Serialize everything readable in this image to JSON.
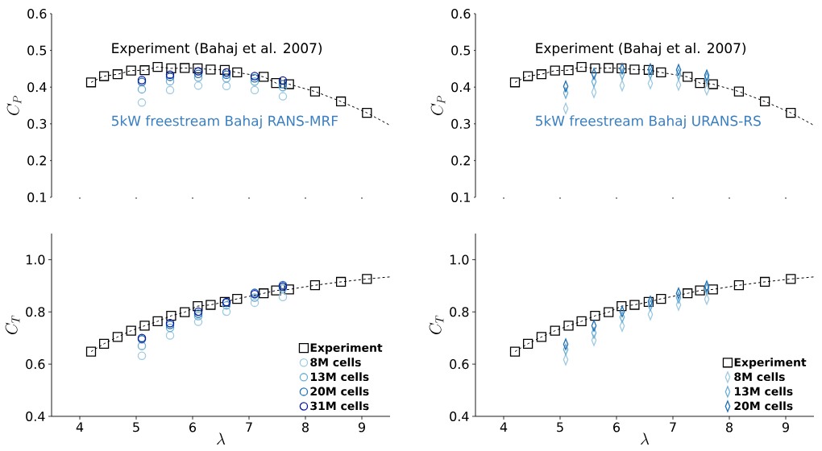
{
  "chart_data": [
    {
      "type": "scatter",
      "ylabel": "C_P",
      "ylim": [
        0.1,
        0.6
      ],
      "xticks": [
        4,
        5,
        6,
        7,
        8,
        9
      ],
      "yticks": [
        0.1,
        0.2,
        0.3,
        0.4,
        0.5,
        0.6
      ],
      "tick_labels": "y",
      "annotations": [
        "Experiment (Bahaj et al. 2007)",
        "5kW freestream Bahaj RANS-MRF"
      ],
      "series": [
        {
          "type": "line",
          "color": "#000000",
          "line_style": "dashed",
          "marker": "none",
          "x": [
            4.2,
            4.43,
            4.67,
            4.91,
            5.15,
            5.38,
            5.62,
            5.86,
            6.09,
            6.32,
            6.57,
            6.79,
            7.26,
            7.48,
            7.71,
            8.17,
            8.63,
            9.09,
            9.5
          ],
          "values": [
            0.413,
            0.43,
            0.435,
            0.445,
            0.446,
            0.455,
            0.451,
            0.452,
            0.451,
            0.448,
            0.447,
            0.44,
            0.428,
            0.411,
            0.408,
            0.388,
            0.361,
            0.33,
            0.296
          ]
        },
        {
          "color": "#000000",
          "marker": "square",
          "x": [
            4.2,
            4.43,
            4.67,
            4.91,
            5.15,
            5.38,
            5.62,
            5.86,
            6.09,
            6.32,
            6.57,
            6.79,
            7.26,
            7.48,
            7.71,
            8.17,
            8.63,
            9.09
          ],
          "values": [
            0.413,
            0.43,
            0.435,
            0.445,
            0.446,
            0.455,
            0.451,
            0.452,
            0.451,
            0.448,
            0.447,
            0.44,
            0.428,
            0.411,
            0.408,
            0.388,
            0.361,
            0.33
          ]
        },
        {
          "color": "#9ecae1",
          "marker": "circle",
          "x": [
            5.1,
            5.6,
            6.1,
            6.6,
            7.1,
            7.6
          ],
          "values": [
            0.358,
            0.392,
            0.404,
            0.403,
            0.392,
            0.375
          ]
        },
        {
          "color": "#6baed6",
          "marker": "circle",
          "x": [
            5.1,
            5.6,
            6.1,
            6.6,
            7.1,
            7.6
          ],
          "values": [
            0.394,
            0.416,
            0.426,
            0.424,
            0.415,
            0.4
          ]
        },
        {
          "color": "#2171b5",
          "marker": "circle",
          "x": [
            5.1,
            5.6,
            6.1,
            6.6,
            7.1,
            7.6
          ],
          "values": [
            0.414,
            0.428,
            0.436,
            0.434,
            0.424,
            0.408
          ]
        },
        {
          "color": "#08189c",
          "marker": "circle",
          "x": [
            5.1,
            5.6,
            6.1,
            6.6,
            7.1,
            7.6
          ],
          "values": [
            0.419,
            0.434,
            0.443,
            0.44,
            0.43,
            0.418
          ]
        }
      ]
    },
    {
      "type": "scatter",
      "ylabel": "C_P",
      "ylim": [
        0.1,
        0.6
      ],
      "xticks": [
        4,
        5,
        6,
        7,
        8,
        9
      ],
      "yticks": [
        0.1,
        0.2,
        0.3,
        0.4,
        0.5,
        0.6
      ],
      "tick_labels": "y",
      "annotations": [
        "Experiment (Bahaj et al. 2007)",
        "5kW freestream Bahaj URANS-RS"
      ],
      "series": [
        {
          "type": "line",
          "color": "#000000",
          "line_style": "dashed",
          "marker": "none",
          "x": [
            4.2,
            4.43,
            4.67,
            4.91,
            5.15,
            5.38,
            5.62,
            5.86,
            6.09,
            6.32,
            6.57,
            6.79,
            7.26,
            7.48,
            7.71,
            8.17,
            8.63,
            9.09,
            9.5
          ],
          "values": [
            0.413,
            0.43,
            0.435,
            0.445,
            0.446,
            0.455,
            0.451,
            0.452,
            0.451,
            0.448,
            0.447,
            0.44,
            0.428,
            0.411,
            0.408,
            0.388,
            0.361,
            0.33,
            0.296
          ]
        },
        {
          "color": "#000000",
          "marker": "square",
          "x": [
            4.2,
            4.43,
            4.67,
            4.91,
            5.15,
            5.38,
            5.62,
            5.86,
            6.09,
            6.32,
            6.57,
            6.79,
            7.26,
            7.48,
            7.71,
            8.17,
            8.63,
            9.09
          ],
          "values": [
            0.413,
            0.43,
            0.435,
            0.445,
            0.446,
            0.455,
            0.451,
            0.452,
            0.451,
            0.448,
            0.447,
            0.44,
            0.428,
            0.411,
            0.408,
            0.388,
            0.361,
            0.33
          ]
        },
        {
          "color": "#9ecae1",
          "marker": "diamond",
          "x": [
            5.1,
            5.6,
            6.1,
            6.6,
            7.1,
            7.6
          ],
          "values": [
            0.342,
            0.386,
            0.404,
            0.41,
            0.406,
            0.393
          ]
        },
        {
          "color": "#6baed6",
          "marker": "diamond",
          "x": [
            5.1,
            5.6,
            6.1,
            6.6,
            7.1,
            7.6
          ],
          "values": [
            0.384,
            0.415,
            0.435,
            0.437,
            0.435,
            0.424
          ]
        },
        {
          "color": "#2171b5",
          "marker": "diamond",
          "x": [
            5.1,
            5.6,
            6.1,
            6.6,
            7.1,
            7.6
          ],
          "values": [
            0.402,
            0.436,
            0.45,
            0.449,
            0.447,
            0.432
          ]
        }
      ]
    },
    {
      "type": "scatter",
      "xlabel": "\\lambda",
      "ylabel": "C_T",
      "xlim": [
        3.5,
        9.5
      ],
      "ylim": [
        0.4,
        1.1
      ],
      "xticks": [
        4,
        5,
        6,
        7,
        8,
        9
      ],
      "yticks": [
        0.4,
        0.6,
        0.8,
        {
          "value": 1,
          "label": "1.0"
        }
      ],
      "legend": "bottom right",
      "series": [
        {
          "type": "line",
          "color": "#000000",
          "line_style": "dashed",
          "marker": "none",
          "x": [
            4.2,
            4.43,
            4.67,
            4.91,
            5.15,
            5.38,
            5.62,
            5.86,
            6.09,
            6.32,
            6.57,
            6.79,
            7.26,
            7.48,
            7.71,
            8.17,
            8.63,
            9.09,
            9.5
          ],
          "values": [
            0.648,
            0.678,
            0.704,
            0.728,
            0.747,
            0.764,
            0.785,
            0.799,
            0.822,
            0.827,
            0.838,
            0.85,
            0.871,
            0.882,
            0.886,
            0.902,
            0.915,
            0.926,
            0.934
          ]
        },
        {
          "name": "Experiment",
          "color": "#000000",
          "marker": "square",
          "x": [
            4.2,
            4.43,
            4.67,
            4.91,
            5.15,
            5.38,
            5.62,
            5.86,
            6.09,
            6.32,
            6.57,
            6.79,
            7.26,
            7.48,
            7.71,
            8.17,
            8.63,
            9.09
          ],
          "values": [
            0.648,
            0.678,
            0.704,
            0.728,
            0.747,
            0.764,
            0.785,
            0.799,
            0.822,
            0.827,
            0.838,
            0.85,
            0.871,
            0.882,
            0.886,
            0.902,
            0.915,
            0.926
          ]
        },
        {
          "name": "8M cells",
          "color": "#9ecae1",
          "marker": "circle",
          "x": [
            5.1,
            5.6,
            6.1,
            6.6,
            7.1,
            7.6
          ],
          "values": [
            0.632,
            0.71,
            0.762,
            0.801,
            0.835,
            0.857
          ]
        },
        {
          "name": "13M cells",
          "color": "#6baed6",
          "marker": "circle",
          "x": [
            5.1,
            5.6,
            6.1,
            6.6,
            7.1,
            7.6
          ],
          "values": [
            0.67,
            0.739,
            0.784,
            0.825,
            0.855,
            0.89
          ]
        },
        {
          "name": "20M cells",
          "color": "#2171b5",
          "marker": "circle",
          "x": [
            5.1,
            5.6,
            6.1,
            6.6,
            7.1,
            7.6
          ],
          "values": [
            0.695,
            0.75,
            0.793,
            0.835,
            0.873,
            0.903
          ]
        },
        {
          "name": "31M cells",
          "color": "#08189c",
          "marker": "circle",
          "x": [
            5.1,
            5.6,
            6.1,
            6.6,
            7.1,
            7.6
          ],
          "values": [
            0.7,
            0.757,
            0.801,
            0.838,
            0.868,
            0.897
          ]
        }
      ]
    },
    {
      "type": "scatter",
      "xlabel": "\\lambda",
      "ylabel": "C_T",
      "xlim": [
        3.5,
        9.5
      ],
      "ylim": [
        0.4,
        1.1
      ],
      "xticks": [
        4,
        5,
        6,
        7,
        8,
        9
      ],
      "yticks": [
        0.4,
        0.6,
        0.8,
        {
          "value": 1,
          "label": "1.0"
        }
      ],
      "legend": "bottom right",
      "series": [
        {
          "type": "line",
          "color": "#000000",
          "line_style": "dashed",
          "marker": "none",
          "x": [
            4.2,
            4.43,
            4.67,
            4.91,
            5.15,
            5.38,
            5.62,
            5.86,
            6.09,
            6.32,
            6.57,
            6.79,
            7.26,
            7.48,
            7.71,
            8.17,
            8.63,
            9.09,
            9.5
          ],
          "values": [
            0.648,
            0.678,
            0.704,
            0.728,
            0.747,
            0.764,
            0.785,
            0.799,
            0.822,
            0.827,
            0.838,
            0.85,
            0.871,
            0.882,
            0.886,
            0.902,
            0.915,
            0.926,
            0.934
          ]
        },
        {
          "name": "Experiment",
          "color": "#000000",
          "marker": "square",
          "x": [
            4.2,
            4.43,
            4.67,
            4.91,
            5.15,
            5.38,
            5.62,
            5.86,
            6.09,
            6.32,
            6.57,
            6.79,
            7.26,
            7.48,
            7.71,
            8.17,
            8.63,
            9.09
          ],
          "values": [
            0.648,
            0.678,
            0.704,
            0.728,
            0.747,
            0.764,
            0.785,
            0.799,
            0.822,
            0.827,
            0.838,
            0.85,
            0.871,
            0.882,
            0.886,
            0.902,
            0.915,
            0.926
          ]
        },
        {
          "name": "8M cells",
          "color": "#9ecae1",
          "marker": "diamond",
          "x": [
            5.1,
            5.6,
            6.1,
            6.6,
            7.1,
            7.6
          ],
          "values": [
            0.617,
            0.691,
            0.746,
            0.79,
            0.827,
            0.849
          ]
        },
        {
          "name": "13M cells",
          "color": "#6baed6",
          "marker": "diamond",
          "x": [
            5.1,
            5.6,
            6.1,
            6.6,
            7.1,
            7.6
          ],
          "values": [
            0.656,
            0.72,
            0.78,
            0.825,
            0.854,
            0.887
          ]
        },
        {
          "name": "20M cells",
          "color": "#2171b5",
          "marker": "diamond",
          "x": [
            5.1,
            5.6,
            6.1,
            6.6,
            7.1,
            7.6
          ],
          "values": [
            0.676,
            0.747,
            0.801,
            0.84,
            0.871,
            0.898
          ]
        }
      ]
    }
  ]
}
